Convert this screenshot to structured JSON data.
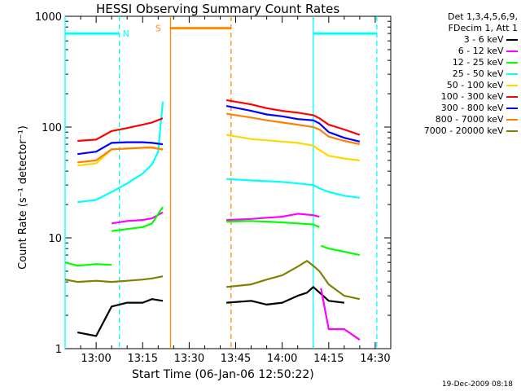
{
  "chart_data": {
    "type": "line",
    "title": "HESSI Observing Summary Count Rates",
    "xlabel": "Start Time (06-Jan-06 12:50:22)",
    "ylabel": "Count Rate (s⁻¹ detector⁻¹)",
    "y_scale": "log",
    "ylim": [
      1,
      1000
    ],
    "xlim_minutes_from_1300": [
      -10,
      95
    ],
    "x_tick_labels": [
      "13:00",
      "13:15",
      "13:30",
      "13:45",
      "14:00",
      "14:15",
      "14:30"
    ],
    "x_tick_minutes": [
      0,
      15,
      30,
      45,
      60,
      75,
      90
    ],
    "y_tick_labels": [
      "1",
      "10",
      "100",
      "1000"
    ],
    "y_tick_values": [
      1,
      10,
      100,
      1000
    ],
    "legend_header": [
      "Det 1,3,4,5,6,9,",
      "FDecim 1, Att 1"
    ],
    "legend_placement": "right",
    "annotations": [
      {
        "text": "N",
        "color": "#00ffff"
      },
      {
        "text": "S",
        "color": "#ff8c00"
      }
    ],
    "footer_timestamp": "19-Dec-2009 08:18",
    "series": [
      {
        "name": "3 - 6 keV",
        "color": "#000000",
        "segments": [
          {
            "x": [
              -6,
              0,
              5,
              10,
              15,
              18,
              21.5
            ],
            "y": [
              1.4,
              1.3,
              2.4,
              2.6,
              2.6,
              2.8,
              2.7
            ]
          },
          {
            "x": [
              42,
              50,
              55,
              60,
              65,
              68,
              70,
              75,
              80
            ],
            "y": [
              2.6,
              2.7,
              2.5,
              2.6,
              3.0,
              3.2,
              3.6,
              2.7,
              2.6
            ]
          }
        ]
      },
      {
        "name": "6 - 12 keV",
        "color": "#ff00ff",
        "segments": [
          {
            "x": [
              5,
              10,
              15,
              18,
              21.5
            ],
            "y": [
              13.5,
              14.2,
              14.5,
              15,
              17
            ]
          },
          {
            "x": [
              42,
              50,
              55,
              60,
              65,
              70,
              72
            ],
            "y": [
              14.5,
              14.8,
              15.2,
              15.5,
              16.5,
              16,
              15.5
            ]
          },
          {
            "x": [
              72.5,
              75,
              80,
              85
            ],
            "y": [
              3.5,
              1.5,
              1.5,
              1.2
            ]
          }
        ]
      },
      {
        "name": "12 - 25 keV",
        "color": "#00ff00",
        "segments": [
          {
            "x": [
              -10,
              -6,
              0,
              5
            ],
            "y": [
              6.0,
              5.6,
              5.8,
              5.7
            ]
          },
          {
            "x": [
              5,
              10,
              15,
              18,
              21.5
            ],
            "y": [
              11.5,
              12,
              12.5,
              13.5,
              19
            ]
          },
          {
            "x": [
              42,
              50,
              55,
              60,
              65,
              70,
              72
            ],
            "y": [
              14,
              14.2,
              14,
              13.8,
              13.5,
              13.2,
              12.5
            ]
          },
          {
            "x": [
              72.5,
              75,
              80,
              85
            ],
            "y": [
              8.5,
              8.0,
              7.5,
              7.0
            ]
          }
        ]
      },
      {
        "name": "25 - 50 keV",
        "color": "#00ffff",
        "segments": [
          {
            "x": [
              -6,
              0,
              5,
              10,
              15,
              18,
              20,
              21.5
            ],
            "y": [
              21,
              22,
              26,
              31,
              38,
              46,
              60,
              170
            ]
          },
          {
            "x": [
              42,
              50,
              55,
              60,
              65,
              70,
              72,
              75,
              80,
              85
            ],
            "y": [
              34,
              33,
              32.5,
              32,
              31,
              30,
              28,
              26,
              24,
              23
            ]
          }
        ]
      },
      {
        "name": "50 - 100 keV",
        "color": "#ffd700",
        "segments": [
          {
            "x": [
              -6,
              0,
              5,
              10,
              15,
              18,
              21.5
            ],
            "y": [
              45,
              47,
              63,
              64,
              65,
              66,
              62
            ]
          },
          {
            "x": [
              42,
              50,
              55,
              60,
              65,
              70,
              72,
              75,
              80,
              85
            ],
            "y": [
              85,
              78,
              76,
              74,
              72,
              68,
              62,
              55,
              52,
              50
            ]
          }
        ]
      },
      {
        "name": "100 - 300 keV",
        "color": "#ff0000",
        "segments": [
          {
            "x": [
              -6,
              0,
              5,
              10,
              15,
              18,
              21.5
            ],
            "y": [
              75,
              77,
              92,
              98,
              105,
              110,
              120
            ]
          },
          {
            "x": [
              42,
              50,
              55,
              60,
              65,
              70,
              72,
              75,
              80,
              85
            ],
            "y": [
              175,
              160,
              148,
              140,
              135,
              128,
              120,
              105,
              95,
              85
            ]
          }
        ]
      },
      {
        "name": "300 - 800 keV",
        "color": "#0000ff",
        "segments": [
          {
            "x": [
              -6,
              0,
              5,
              10,
              15,
              18,
              21.5
            ],
            "y": [
              57,
              60,
              72,
              73,
              73,
              72,
              70
            ]
          },
          {
            "x": [
              42,
              50,
              55,
              60,
              65,
              70,
              72,
              75,
              80,
              85
            ],
            "y": [
              155,
              140,
              130,
              125,
              118,
              115,
              108,
              90,
              80,
              74
            ]
          }
        ]
      },
      {
        "name": "800 - 7000 keV",
        "color": "#ff8000",
        "segments": [
          {
            "x": [
              -6,
              0,
              5,
              10,
              15,
              18,
              21.5
            ],
            "y": [
              48,
              50,
              63,
              64,
              65,
              65,
              63
            ]
          },
          {
            "x": [
              42,
              50,
              55,
              60,
              65,
              70,
              72,
              75,
              80,
              85
            ],
            "y": [
              132,
              122,
              115,
              110,
              105,
              100,
              95,
              82,
              75,
              70
            ]
          }
        ]
      },
      {
        "name": "7000 - 20000 keV",
        "color": "#808000",
        "segments": [
          {
            "x": [
              -10,
              -6,
              0,
              5
            ],
            "y": [
              4.2,
              4.0,
              4.1,
              4.0
            ]
          },
          {
            "x": [
              5,
              10,
              15,
              18,
              21.5
            ],
            "y": [
              4.0,
              4.1,
              4.2,
              4.3,
              4.5
            ]
          },
          {
            "x": [
              42,
              50,
              55,
              60,
              65,
              68,
              70,
              72,
              75,
              80,
              85
            ],
            "y": [
              3.6,
              3.8,
              4.2,
              4.6,
              5.5,
              6.2,
              5.6,
              5.0,
              3.8,
              3.0,
              2.8
            ]
          }
        ]
      }
    ],
    "bars": [
      {
        "label": "N",
        "color": "#00ffff",
        "x_start": -10,
        "x_end": 7.5,
        "y": 700,
        "style": "segment"
      },
      {
        "label": "N",
        "color": "#00ffff",
        "x_start": 70,
        "x_end": 90.5,
        "y": 700,
        "style": "segment"
      },
      {
        "label": "S",
        "color": "#ff8c00",
        "x_start": 24,
        "x_end": 43.5,
        "y": 780,
        "style": "segment"
      }
    ],
    "vertical_lines": [
      {
        "x": -10,
        "color": "#00ffff",
        "dash": false
      },
      {
        "x": 7.5,
        "color": "#00ffff",
        "dash": true
      },
      {
        "x": 24,
        "color": "#ff8c00",
        "dash": false
      },
      {
        "x": 43.5,
        "color": "#ff8c00",
        "dash": true
      },
      {
        "x": 70,
        "color": "#00ffff",
        "dash": false
      },
      {
        "x": 90.5,
        "color": "#00ffff",
        "dash": true
      }
    ]
  }
}
